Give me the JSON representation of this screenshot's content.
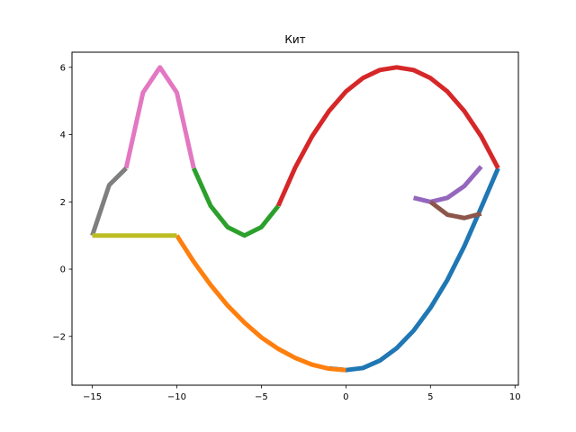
{
  "chart_data": {
    "type": "line",
    "title": "Кит",
    "xlabel": "",
    "ylabel": "",
    "xlim": [
      -16.2,
      10.2
    ],
    "ylim": [
      -3.45,
      6.45
    ],
    "xticks": [
      -15,
      -10,
      -5,
      0,
      5,
      10
    ],
    "xtick_labels": [
      "−15",
      "−10",
      "−5",
      "0",
      "5",
      "10"
    ],
    "yticks": [
      -2,
      0,
      2,
      4,
      6
    ],
    "ytick_labels": [
      "−2",
      "0",
      "2",
      "4",
      "6"
    ],
    "grid": false,
    "legend": "none",
    "series": [
      {
        "color": "#1f77b4",
        "x": [
          -1,
          0,
          1,
          2,
          3,
          4,
          5,
          6,
          7,
          8,
          9
        ],
        "y": [
          -2.95,
          -3.0,
          -2.94,
          -2.72,
          -2.35,
          -1.83,
          -1.15,
          -0.32,
          0.68,
          1.83,
          3.0
        ]
      },
      {
        "color": "#ff7f0e",
        "x": [
          -10,
          -9,
          -8,
          -7,
          -6,
          -5,
          -4,
          -3,
          -2,
          -1,
          0
        ],
        "y": [
          1.0,
          0.22,
          -0.47,
          -1.08,
          -1.59,
          -2.03,
          -2.37,
          -2.64,
          -2.84,
          -2.96,
          -3.0
        ]
      },
      {
        "color": "#2ca02c",
        "x": [
          -9,
          -8,
          -7,
          -6,
          -5,
          -4
        ],
        "y": [
          3.0,
          1.88,
          1.25,
          1.0,
          1.25,
          1.88
        ]
      },
      {
        "color": "#d62728",
        "x": [
          -4,
          -3,
          -2,
          -1,
          0,
          1,
          2,
          3,
          4,
          5,
          6,
          7,
          8,
          9
        ],
        "y": [
          1.88,
          3.02,
          3.95,
          4.7,
          5.28,
          5.68,
          5.92,
          6.0,
          5.92,
          5.68,
          5.28,
          4.7,
          3.95,
          3.0
        ]
      },
      {
        "color": "#9467bd",
        "x": [
          4,
          5,
          6,
          7,
          8
        ],
        "y": [
          2.12,
          2.0,
          2.12,
          2.47,
          3.05
        ]
      },
      {
        "color": "#8c564b",
        "x": [
          5,
          6,
          7,
          8
        ],
        "y": [
          2.0,
          1.62,
          1.52,
          1.65
        ]
      },
      {
        "color": "#e377c2",
        "x": [
          -13,
          -12,
          -11,
          -10,
          -9
        ],
        "y": [
          3.0,
          5.25,
          6.0,
          5.25,
          3.0
        ]
      },
      {
        "color": "#7f7f7f",
        "x": [
          -15,
          -14,
          -13
        ],
        "y": [
          1.0,
          2.5,
          3.0
        ]
      },
      {
        "color": "#bcbd22",
        "x": [
          -15,
          -14,
          -13,
          -12,
          -11,
          -10
        ],
        "y": [
          1.0,
          1.0,
          1.0,
          1.0,
          1.0,
          1.0
        ]
      }
    ]
  }
}
